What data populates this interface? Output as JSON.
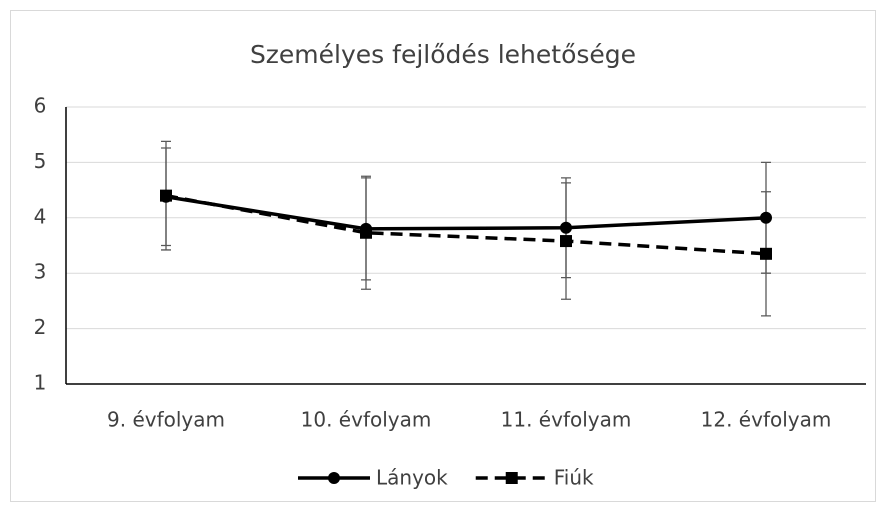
{
  "chart_data": {
    "type": "line",
    "title": "Személyes fejlődés lehetősége",
    "categories": [
      "9. évfolyam",
      "10. évfolyam",
      "11. évfolyam",
      "12. évfolyam"
    ],
    "series": [
      {
        "name": "Lányok",
        "color": "#000000",
        "line_style": "solid",
        "marker": "circle",
        "values": [
          4.38,
          3.8,
          3.82,
          4.0
        ],
        "errors": [
          0.88,
          0.92,
          0.9,
          1.0
        ]
      },
      {
        "name": "Fiúk",
        "color": "#000000",
        "line_style": "dashed",
        "marker": "square",
        "values": [
          4.4,
          3.73,
          3.58,
          3.35
        ],
        "errors": [
          0.98,
          1.02,
          1.05,
          1.12
        ]
      }
    ],
    "ylim": [
      1,
      6
    ],
    "yticks": [
      1,
      2,
      3,
      4,
      5,
      6
    ],
    "grid": true,
    "legend": "bottom"
  }
}
